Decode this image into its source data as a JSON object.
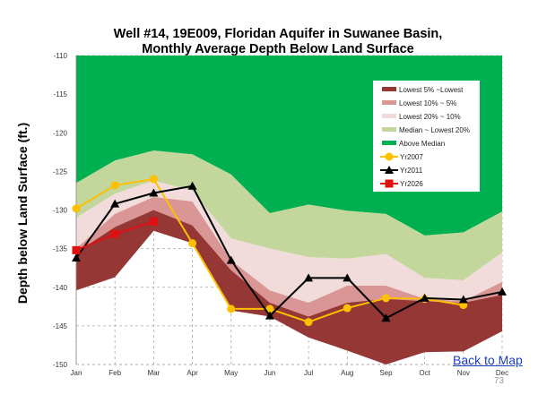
{
  "chart_data": {
    "type": "area",
    "title": [
      "Well #14, 19E009, Floridan Aquifer in Suwanee Basin,",
      "Monthly Average Depth Below  Land Surface"
    ],
    "xlabel": "",
    "ylabel": "Depth below Land Surface (ft.)",
    "ylim": [
      -150,
      -110
    ],
    "yticks": [
      -110,
      -115,
      -120,
      -125,
      -130,
      -135,
      -140,
      -145,
      -150
    ],
    "categories": [
      "Jan",
      "Feb",
      "Mar",
      "Apr",
      "May",
      "Jun",
      "Jul",
      "Aug",
      "Sep",
      "Oct",
      "Nov",
      "Dec"
    ],
    "bands": [
      {
        "name": "Above Median",
        "color": "#00b050",
        "top": [
          -110,
          -110,
          -110,
          -110,
          -110,
          -110,
          -110,
          -110,
          -110,
          -110,
          -110,
          -110
        ],
        "bottom": [
          -126.5,
          -123.6,
          -122.3,
          -122.8,
          -125.4,
          -130.4,
          -129.3,
          -130.1,
          -130.5,
          -133.3,
          -132.9,
          -130.2
        ]
      },
      {
        "name": "Median ~ Lowest 20%",
        "color": "#c3d69b",
        "top": [
          -126.5,
          -123.6,
          -122.3,
          -122.8,
          -125.4,
          -130.4,
          -129.3,
          -130.1,
          -130.5,
          -133.3,
          -132.9,
          -130.2
        ],
        "bottom": [
          -131,
          -127.9,
          -126.2,
          -127.5,
          -133.7,
          -135,
          -136.1,
          -136.3,
          -135.7,
          -138.8,
          -139.1,
          -135.5
        ]
      },
      {
        "name": "Lowest 20% ~ 10%",
        "color": "#f2dcdb",
        "top": [
          -131,
          -127.9,
          -126.2,
          -127.5,
          -133.7,
          -135,
          -136.1,
          -136.3,
          -135.7,
          -138.8,
          -139.1,
          -135.5
        ],
        "bottom": [
          -135,
          -130.5,
          -128.3,
          -128.9,
          -136.5,
          -140.4,
          -142,
          -139.8,
          -139.8,
          -141.5,
          -141.8,
          -139.3
        ]
      },
      {
        "name": "Lowest 10% ~ 5%",
        "color": "#d99694",
        "top": [
          -135,
          -130.5,
          -128.3,
          -128.9,
          -136.5,
          -140.4,
          -142,
          -139.8,
          -139.8,
          -141.5,
          -141.8,
          -139.3
        ],
        "bottom": [
          -135.5,
          -132.2,
          -130,
          -132,
          -137.8,
          -142,
          -143.8,
          -142,
          -141.5,
          -141.8,
          -142,
          -141
        ]
      },
      {
        "name": "Lowest 5% ~Lowest",
        "color": "#953735",
        "top": [
          -135.5,
          -132.2,
          -130,
          -132,
          -137.8,
          -142,
          -143.8,
          -142,
          -141.5,
          -141.8,
          -142,
          -141
        ],
        "bottom": [
          -140.4,
          -138.7,
          -132.7,
          -134.3,
          -143,
          -143.8,
          -146.5,
          -148.2,
          -150,
          -148.4,
          -148.3,
          -145.7
        ]
      }
    ],
    "legend_order": [
      "Lowest 5% ~Lowest",
      "Lowest 10% ~ 5%",
      "Lowest 20% ~ 10%",
      "Median ~ Lowest 20%",
      "Above Median"
    ],
    "series": [
      {
        "name": "Yr2007",
        "color": "#ffc000",
        "marker": "circle",
        "values": [
          -129.8,
          -126.8,
          -126,
          -134.3,
          -142.8,
          -142.8,
          -144.5,
          -142.7,
          -141.4,
          -141.5,
          -142.3,
          null
        ]
      },
      {
        "name": "Yr2011",
        "color": "#000000",
        "marker": "triangle",
        "values": [
          -136.2,
          -129.2,
          -127.8,
          -126.9,
          -136.5,
          -143.7,
          -138.8,
          -138.8,
          -144.0,
          -141.4,
          -141.6,
          -140.6
        ]
      },
      {
        "name": "Yr2026",
        "color": "#e01010",
        "marker": "square",
        "values": [
          -135.2,
          -133.1,
          -131.5,
          null,
          null,
          null,
          null,
          null,
          null,
          null,
          null,
          null
        ]
      }
    ],
    "grid": true,
    "legend_position": "top-right"
  },
  "link": {
    "back_to_map": "Back to Map"
  },
  "page_number": "73"
}
